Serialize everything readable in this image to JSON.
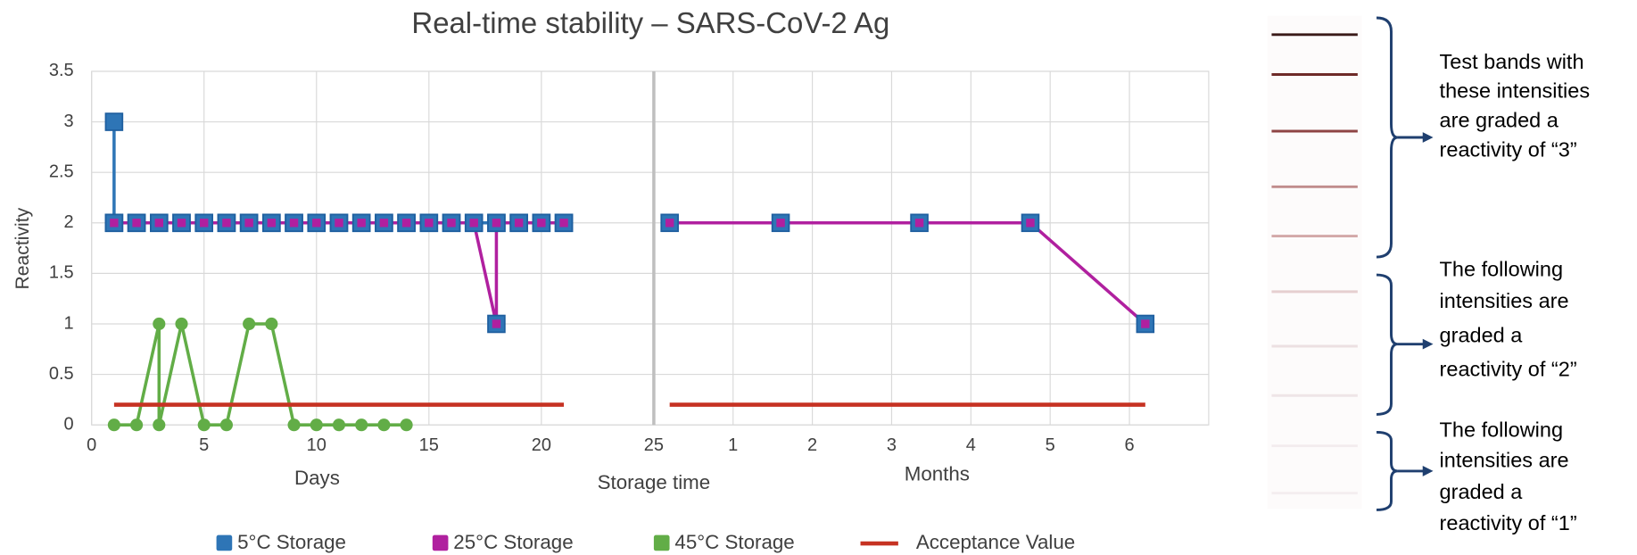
{
  "chart_data": {
    "type": "line",
    "title": "Real-time stability – SARS-CoV-2 Ag",
    "y_label": "Reactivity",
    "x_label": "Storage time",
    "ylim": [
      0,
      3.5
    ],
    "yticks": [
      0,
      0.5,
      1,
      1.5,
      2,
      2.5,
      3,
      3.5
    ],
    "grid": true,
    "legend": "bottom",
    "panels": [
      {
        "x_label": "Days",
        "xlim": [
          0,
          25
        ],
        "xticks": [
          0,
          5,
          10,
          15,
          20,
          25
        ],
        "series": [
          {
            "name": "5°C Storage",
            "color": "#2e75b6",
            "marker": "square",
            "x": [
              1,
              1,
              2,
              3,
              4,
              5,
              6,
              7,
              8,
              9,
              10,
              11,
              12,
              13,
              14,
              15,
              16,
              17,
              18,
              19,
              20,
              21
            ],
            "values": [
              3,
              2,
              2,
              2,
              2,
              2,
              2,
              2,
              2,
              2,
              2,
              2,
              2,
              2,
              2,
              2,
              2,
              2,
              2,
              2,
              2,
              2
            ]
          },
          {
            "name": "25°C Storage",
            "color": "#b0209f",
            "marker": "inner-square",
            "x": [
              1,
              2,
              3,
              4,
              5,
              6,
              7,
              8,
              9,
              10,
              11,
              12,
              13,
              14,
              15,
              16,
              17,
              18,
              18,
              19,
              20,
              21
            ],
            "values": [
              2,
              2,
              2,
              2,
              2,
              2,
              2,
              2,
              2,
              2,
              2,
              2,
              2,
              2,
              2,
              2,
              2,
              1,
              2,
              2,
              2,
              2
            ]
          },
          {
            "name": "45°C Storage",
            "color": "#62ad47",
            "marker": "circle",
            "x": [
              1,
              2,
              3,
              3,
              4,
              5,
              6,
              7,
              8,
              9,
              10,
              11,
              12,
              13,
              14
            ],
            "values": [
              0,
              0,
              1,
              0,
              1,
              0,
              0,
              1,
              1,
              0,
              0,
              0,
              0,
              0,
              0
            ]
          },
          {
            "name": "Acceptance Value",
            "color": "#c63222",
            "marker": "none",
            "x": [
              1,
              21
            ],
            "values": [
              0.2,
              0.2
            ]
          }
        ]
      },
      {
        "x_label": "Months",
        "xlim": [
          0,
          7
        ],
        "xticks": [
          1,
          2,
          3,
          4,
          5,
          6
        ],
        "series": [
          {
            "name": "25°C Storage",
            "color": "#b0209f",
            "marker": "inner-square",
            "x": [
              0.2,
              1.6,
              3.35,
              4.75,
              6.2
            ],
            "values": [
              2,
              2,
              2,
              2,
              1
            ]
          },
          {
            "name": "Acceptance Value",
            "color": "#c63222",
            "marker": "none",
            "x": [
              0.2,
              6.2
            ],
            "values": [
              0.2,
              0.2
            ]
          }
        ]
      }
    ]
  },
  "notes": [
    {
      "lines": [
        "Test bands with",
        "these intensities",
        "are graded a",
        "reactivity of “3”"
      ]
    },
    {
      "lines": [
        "The following",
        "intensities are",
        "graded a",
        "reactivity of “2”"
      ]
    },
    {
      "lines": [
        "The following",
        "intensities are",
        "graded a",
        "reactivity of “1”"
      ]
    }
  ]
}
